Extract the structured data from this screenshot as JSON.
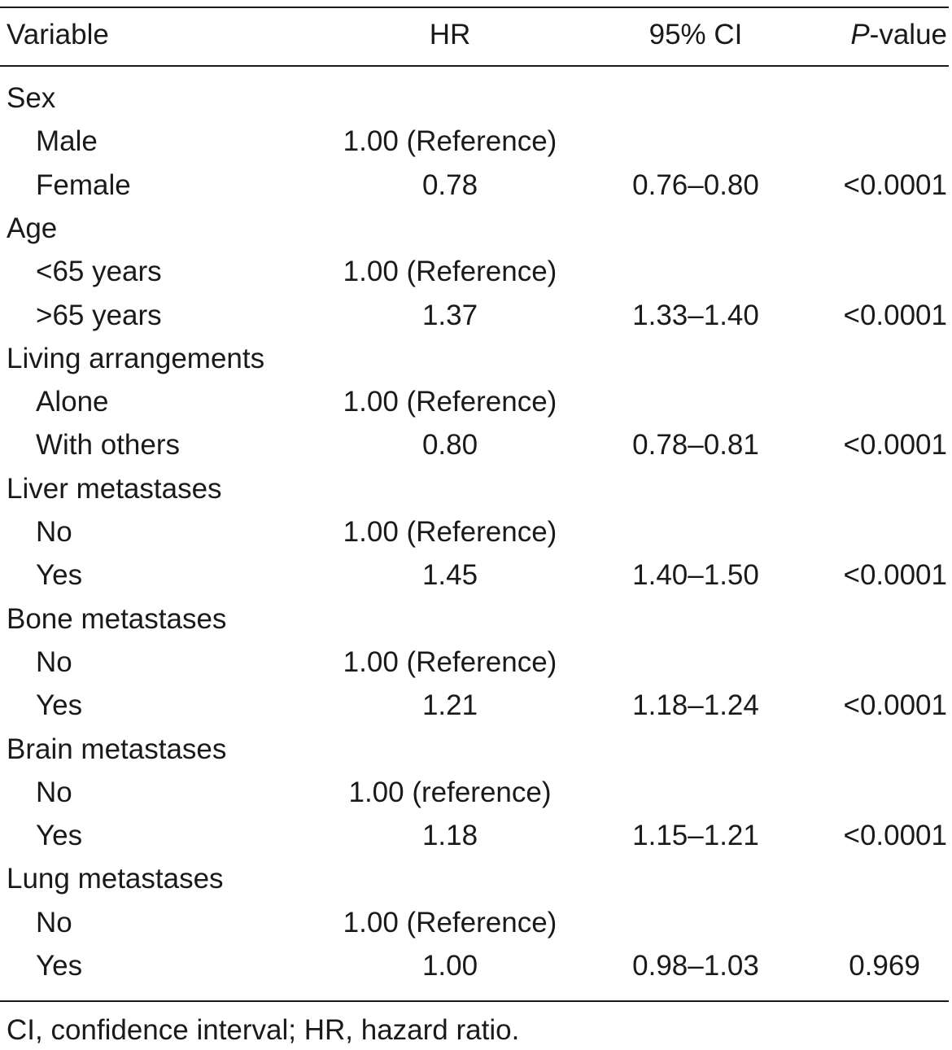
{
  "table": {
    "headers": {
      "variable": "Variable",
      "hr": "HR",
      "ci": "95% CI",
      "p_italic": "P",
      "p_rest": "-value"
    },
    "rows": [
      {
        "variable": "Sex",
        "hr": "",
        "ci": "",
        "p": "",
        "indent": false
      },
      {
        "variable": "Male",
        "hr": "1.00 (Reference)",
        "ci": "",
        "p": "",
        "indent": true
      },
      {
        "variable": "Female",
        "hr": "0.78",
        "ci": "0.76–0.80",
        "p": "<0.0001",
        "indent": true
      },
      {
        "variable": "Age",
        "hr": "",
        "ci": "",
        "p": "",
        "indent": false
      },
      {
        "variable": "<65 years",
        "hr": "1.00 (Reference)",
        "ci": "",
        "p": "",
        "indent": true
      },
      {
        "variable": ">65 years",
        "hr": "1.37",
        "ci": "1.33–1.40",
        "p": "<0.0001",
        "indent": true
      },
      {
        "variable": "Living arrangements",
        "hr": "",
        "ci": "",
        "p": "",
        "indent": false
      },
      {
        "variable": "Alone",
        "hr": "1.00 (Reference)",
        "ci": "",
        "p": "",
        "indent": true
      },
      {
        "variable": "With others",
        "hr": "0.80",
        "ci": "0.78–0.81",
        "p": "<0.0001",
        "indent": true
      },
      {
        "variable": "Liver metastases",
        "hr": "",
        "ci": "",
        "p": "",
        "indent": false
      },
      {
        "variable": "No",
        "hr": "1.00 (Reference)",
        "ci": "",
        "p": "",
        "indent": true
      },
      {
        "variable": "Yes",
        "hr": "1.45",
        "ci": "1.40–1.50",
        "p": "<0.0001",
        "indent": true
      },
      {
        "variable": "Bone metastases",
        "hr": "",
        "ci": "",
        "p": "",
        "indent": false
      },
      {
        "variable": "No",
        "hr": "1.00 (Reference)",
        "ci": "",
        "p": "",
        "indent": true
      },
      {
        "variable": "Yes",
        "hr": "1.21",
        "ci": "1.18–1.24",
        "p": "<0.0001",
        "indent": true
      },
      {
        "variable": "Brain metastases",
        "hr": "",
        "ci": "",
        "p": "",
        "indent": false
      },
      {
        "variable": "No",
        "hr": "1.00 (reference)",
        "ci": "",
        "p": "",
        "indent": true
      },
      {
        "variable": "Yes",
        "hr": "1.18",
        "ci": "1.15–1.21",
        "p": "<0.0001",
        "indent": true
      },
      {
        "variable": "Lung metastases",
        "hr": "",
        "ci": "",
        "p": "",
        "indent": false
      },
      {
        "variable": "No",
        "hr": "1.00 (Reference)",
        "ci": "",
        "p": "",
        "indent": true
      },
      {
        "variable": "Yes",
        "hr": "1.00",
        "ci": "0.98–1.03",
        "p": "0.969",
        "indent": true
      }
    ]
  },
  "footnote": "CI, confidence interval; HR, hazard ratio."
}
